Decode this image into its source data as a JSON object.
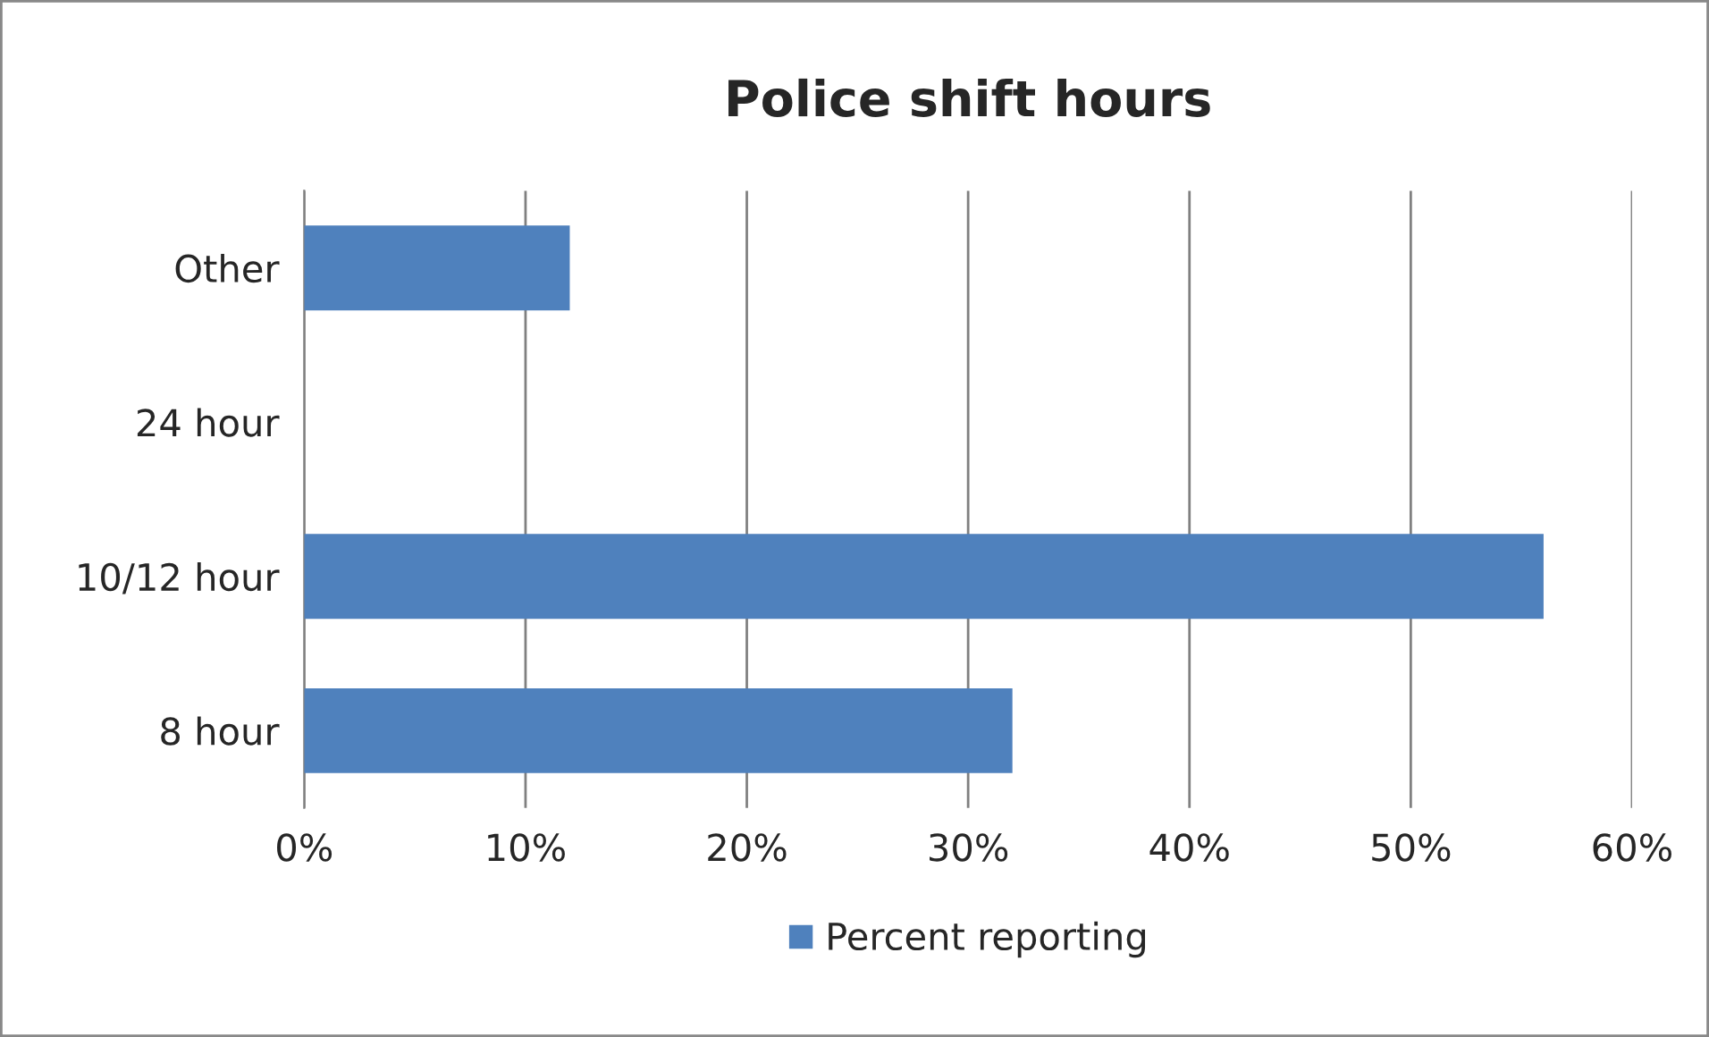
{
  "chart_data": {
    "type": "bar",
    "orientation": "horizontal",
    "title": "Police shift hours",
    "categories": [
      "Other",
      "24 hour",
      "10/12 hour",
      "8 hour"
    ],
    "series": [
      {
        "name": "Percent reporting",
        "color": "#4f81bd",
        "values": [
          12,
          0,
          56,
          32
        ]
      }
    ],
    "xlim": [
      0,
      60
    ],
    "xticks": [
      {
        "value": 0,
        "label": "0%"
      },
      {
        "value": 10,
        "label": "10%"
      },
      {
        "value": 20,
        "label": "20%"
      },
      {
        "value": 30,
        "label": "30%"
      },
      {
        "value": 40,
        "label": "40%"
      },
      {
        "value": 50,
        "label": "50%"
      },
      {
        "value": 60,
        "label": "60%"
      }
    ],
    "grid": "x",
    "legend": "bottom"
  }
}
